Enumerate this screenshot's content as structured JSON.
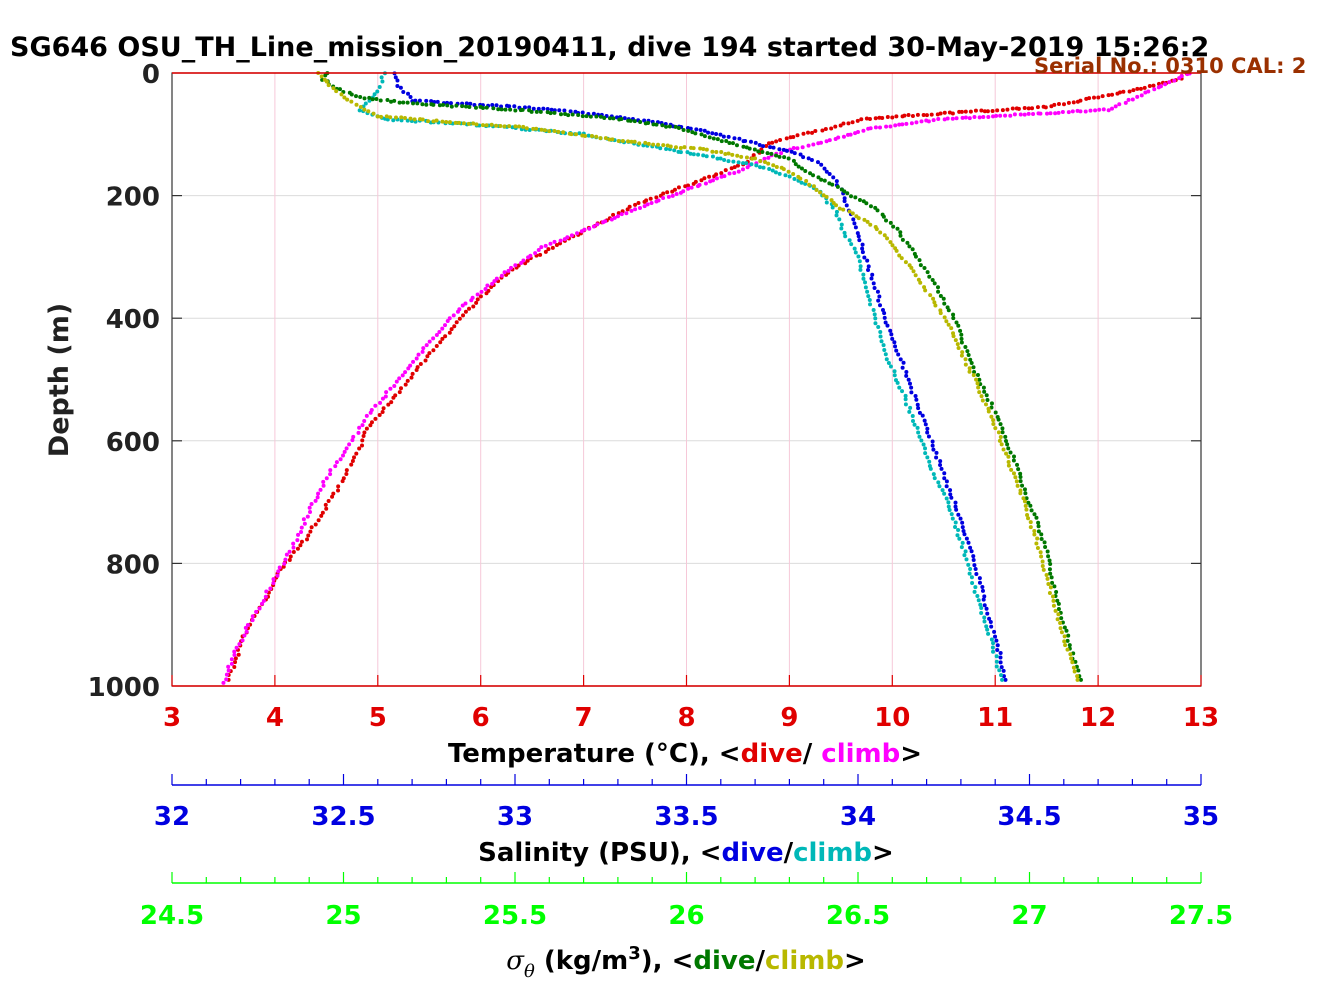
{
  "chart_data": {
    "type": "scatter",
    "title": "SG646 OSU_TH_Line_mission_20190411, dive 194 started 30-May-2019 15:26:2",
    "annotation": "Serial No.: 0310  CAL: 2",
    "ylabel": "Depth (m)",
    "ylim": [
      0,
      1000
    ],
    "y_reversed": true,
    "yticks": [
      "0",
      "200",
      "400",
      "600",
      "800",
      "1000"
    ],
    "grid": true,
    "axes": [
      {
        "id": "temperature",
        "label_prefix": "Temperature (°C), <",
        "label_dive": "dive",
        "label_sep": "/ ",
        "label_climb": "climb",
        "label_suffix": ">",
        "range": [
          3,
          13
        ],
        "ticks": [
          "3",
          "4",
          "5",
          "6",
          "7",
          "8",
          "9",
          "10",
          "11",
          "12",
          "13"
        ],
        "color": "#e00000"
      },
      {
        "id": "salinity",
        "label_prefix": "Salinity (PSU), <",
        "label_dive": "dive",
        "label_sep": "/",
        "label_climb": "climb",
        "label_suffix": ">",
        "range": [
          32,
          35
        ],
        "ticks": [
          "32",
          "32.5",
          "33",
          "33.5",
          "34",
          "34.5",
          "35"
        ],
        "color": "#0000e0"
      },
      {
        "id": "sigma",
        "label_symbol": "σ",
        "label_symbol_sub": "θ",
        "label_units_a": " (kg/m",
        "label_units_sup": "3",
        "label_units_b": "), <",
        "label_dive": "dive",
        "label_sep": "/",
        "label_climb": "climb",
        "label_suffix": ">",
        "range": [
          24.5,
          27.5
        ],
        "ticks": [
          "24.5",
          "25",
          "25.5",
          "26",
          "26.5",
          "27",
          "27.5"
        ],
        "color": "#00ff00"
      }
    ],
    "series": [
      {
        "name": "dive",
        "axis": "temperature",
        "color": "#e00000",
        "points": [
          [
            12.85,
            0
          ],
          [
            12.8,
            10
          ],
          [
            12.3,
            30
          ],
          [
            11.5,
            55
          ],
          [
            10.6,
            65
          ],
          [
            9.7,
            75
          ],
          [
            9.4,
            90
          ],
          [
            9.0,
            105
          ],
          [
            8.8,
            115
          ],
          [
            8.7,
            130
          ],
          [
            8.6,
            145
          ],
          [
            8.3,
            165
          ],
          [
            7.9,
            190
          ],
          [
            7.5,
            215
          ],
          [
            7.1,
            250
          ],
          [
            6.7,
            285
          ],
          [
            6.3,
            320
          ],
          [
            6.1,
            350
          ],
          [
            5.9,
            385
          ],
          [
            5.6,
            440
          ],
          [
            5.4,
            480
          ],
          [
            5.2,
            520
          ],
          [
            4.9,
            580
          ],
          [
            4.8,
            620
          ],
          [
            4.6,
            680
          ],
          [
            4.3,
            760
          ],
          [
            4.05,
            810
          ],
          [
            3.9,
            860
          ],
          [
            3.7,
            920
          ],
          [
            3.55,
            990
          ]
        ]
      },
      {
        "name": "climb",
        "axis": "temperature",
        "color": "#ff00ff",
        "points": [
          [
            12.9,
            0
          ],
          [
            12.5,
            30
          ],
          [
            12.1,
            60
          ],
          [
            10.5,
            75
          ],
          [
            9.8,
            90
          ],
          [
            9.4,
            110
          ],
          [
            9.0,
            125
          ],
          [
            8.75,
            140
          ],
          [
            8.5,
            160
          ],
          [
            8.1,
            185
          ],
          [
            7.7,
            210
          ],
          [
            7.1,
            250
          ],
          [
            6.6,
            285
          ],
          [
            6.2,
            330
          ],
          [
            5.9,
            370
          ],
          [
            5.7,
            400
          ],
          [
            5.4,
            460
          ],
          [
            5.15,
            510
          ],
          [
            4.9,
            560
          ],
          [
            4.75,
            600
          ],
          [
            4.5,
            660
          ],
          [
            4.35,
            710
          ],
          [
            4.15,
            780
          ],
          [
            3.95,
            840
          ],
          [
            3.75,
            900
          ],
          [
            3.6,
            950
          ],
          [
            3.5,
            995
          ]
        ]
      },
      {
        "name": "dive",
        "axis": "salinity",
        "color": "#0000e0",
        "points": [
          [
            32.65,
            0
          ],
          [
            32.66,
            20
          ],
          [
            32.7,
            45
          ],
          [
            33.0,
            55
          ],
          [
            33.2,
            65
          ],
          [
            33.4,
            80
          ],
          [
            33.55,
            95
          ],
          [
            33.7,
            115
          ],
          [
            33.82,
            130
          ],
          [
            33.88,
            145
          ],
          [
            33.92,
            165
          ],
          [
            33.95,
            190
          ],
          [
            33.98,
            230
          ],
          [
            34.0,
            260
          ],
          [
            34.02,
            300
          ],
          [
            34.05,
            350
          ],
          [
            34.08,
            400
          ],
          [
            34.12,
            460
          ],
          [
            34.16,
            520
          ],
          [
            34.2,
            580
          ],
          [
            34.24,
            640
          ],
          [
            34.28,
            700
          ],
          [
            34.33,
            780
          ],
          [
            34.37,
            860
          ],
          [
            34.41,
            940
          ],
          [
            34.43,
            990
          ]
        ]
      },
      {
        "name": "climb",
        "axis": "salinity",
        "color": "#00b8b8",
        "points": [
          [
            32.62,
            0
          ],
          [
            32.6,
            30
          ],
          [
            32.55,
            60
          ],
          [
            32.62,
            75
          ],
          [
            32.9,
            85
          ],
          [
            33.2,
            100
          ],
          [
            33.4,
            120
          ],
          [
            33.55,
            135
          ],
          [
            33.7,
            150
          ],
          [
            33.8,
            170
          ],
          [
            33.88,
            190
          ],
          [
            33.93,
            220
          ],
          [
            33.96,
            260
          ],
          [
            34.0,
            300
          ],
          [
            34.02,
            350
          ],
          [
            34.05,
            400
          ],
          [
            34.08,
            460
          ],
          [
            34.13,
            520
          ],
          [
            34.17,
            580
          ],
          [
            34.21,
            640
          ],
          [
            34.26,
            700
          ],
          [
            34.31,
            780
          ],
          [
            34.35,
            860
          ],
          [
            34.39,
            930
          ],
          [
            34.42,
            990
          ]
        ]
      },
      {
        "name": "dive",
        "axis": "sigma",
        "color": "#007800",
        "points": [
          [
            24.95,
            0
          ],
          [
            24.94,
            10
          ],
          [
            24.98,
            25
          ],
          [
            25.05,
            40
          ],
          [
            25.2,
            50
          ],
          [
            25.5,
            60
          ],
          [
            25.8,
            75
          ],
          [
            25.98,
            90
          ],
          [
            26.1,
            110
          ],
          [
            26.2,
            125
          ],
          [
            26.3,
            140
          ],
          [
            26.35,
            160
          ],
          [
            26.45,
            190
          ],
          [
            26.55,
            220
          ],
          [
            26.62,
            260
          ],
          [
            26.67,
            300
          ],
          [
            26.73,
            350
          ],
          [
            26.78,
            400
          ],
          [
            26.82,
            460
          ],
          [
            26.87,
            520
          ],
          [
            26.92,
            580
          ],
          [
            26.96,
            640
          ],
          [
            27.0,
            700
          ],
          [
            27.05,
            780
          ],
          [
            27.08,
            860
          ],
          [
            27.12,
            940
          ],
          [
            27.15,
            990
          ]
        ]
      },
      {
        "name": "climb",
        "axis": "sigma",
        "color": "#b8b800",
        "points": [
          [
            24.93,
            0
          ],
          [
            24.96,
            20
          ],
          [
            25.0,
            40
          ],
          [
            25.05,
            55
          ],
          [
            25.1,
            70
          ],
          [
            25.3,
            80
          ],
          [
            25.55,
            90
          ],
          [
            25.8,
            110
          ],
          [
            26.05,
            125
          ],
          [
            26.2,
            140
          ],
          [
            26.3,
            160
          ],
          [
            26.38,
            190
          ],
          [
            26.45,
            220
          ],
          [
            26.55,
            250
          ],
          [
            26.6,
            280
          ],
          [
            26.67,
            330
          ],
          [
            26.73,
            380
          ],
          [
            26.78,
            430
          ],
          [
            26.84,
            500
          ],
          [
            26.89,
            560
          ],
          [
            26.93,
            620
          ],
          [
            26.97,
            680
          ],
          [
            27.02,
            760
          ],
          [
            27.06,
            840
          ],
          [
            27.1,
            920
          ],
          [
            27.14,
            990
          ]
        ]
      }
    ]
  }
}
